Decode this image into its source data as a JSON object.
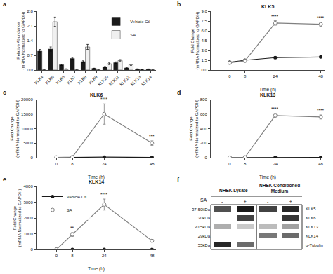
{
  "chart_data": [
    {
      "type": "bar",
      "annotations": [
        {
          "text": "a"
        }
      ],
      "categories": [
        "KLK4",
        "KLK5",
        "KLK6",
        "KLK7",
        "KLK8",
        "KLK9",
        "KLK10",
        "KLK11",
        "KLK12",
        "KLK13",
        "KLK14"
      ],
      "series": [
        {
          "name": "Vehicle Ctl",
          "color": "#1a1a1a",
          "values": [
            0.9,
            1.0,
            0.25,
            0.55,
            0.4,
            0.08,
            0.15,
            0.35,
            0.1,
            0.05,
            0.05
          ],
          "errors": [
            0.08,
            0.1,
            0.03,
            0.05,
            0.04,
            0.01,
            0.02,
            0.04,
            0.01,
            0.01,
            0.005
          ]
        },
        {
          "name": "SA",
          "color": "#f0f0f0",
          "values": [
            0.0,
            2.3,
            0.05,
            0.0,
            1.1,
            0.0,
            0.3,
            0.45,
            0.25,
            0.02,
            0.0
          ],
          "errors": [
            0.0,
            0.22,
            0.01,
            0.0,
            0.12,
            0.0,
            0.04,
            0.05,
            0.03,
            0.005,
            0.0
          ]
        }
      ],
      "ylabel": "Relative Abundance\n(mRNA Normalized to GAPDH)",
      "ylim": [
        0,
        2.8
      ],
      "yticks": [
        {
          "value": 0.0,
          "label": "0.0"
        },
        0.7,
        1.4,
        2.1,
        2.8
      ],
      "legend": "upper right",
      "grid": false
    },
    {
      "type": "line",
      "title": "KLK5",
      "annotations": [
        {
          "text": "b"
        },
        {
          "x": 24,
          "text": "****"
        },
        {
          "x": 48,
          "text": "****"
        }
      ],
      "x": [
        0,
        8,
        24,
        48
      ],
      "series": [
        {
          "color": "#1a1a1a",
          "marker": "circle",
          "values": [
            1.2,
            1.5,
            1.9,
            2.0
          ],
          "errors": [
            0.05,
            0.1,
            0.15,
            0.12
          ]
        },
        {
          "color": "#808080",
          "marker": "open_circle",
          "values": [
            1.1,
            1.4,
            7.2,
            7.0
          ],
          "errors": [
            0.05,
            0.1,
            0.35,
            0.3
          ]
        }
      ],
      "xlabel": "Time (h)",
      "ylabel": "Fold Change\n(mRNA Normalized to GAPDH)",
      "xlim": [
        -10,
        50
      ],
      "xticks": [
        0,
        8,
        24,
        48
      ],
      "ylim": [
        0,
        9.0
      ],
      "yticks": [
        {
          "value": 0.0,
          "label": "0.0"
        },
        1.5,
        {
          "value": 3.0,
          "label": "3.0"
        },
        4.5,
        {
          "value": 6.0,
          "label": "6.0"
        },
        7.5,
        {
          "value": 9.0,
          "label": "9.0"
        }
      ],
      "grid": false
    },
    {
      "type": "line",
      "title": "KLK6",
      "annotations": [
        {
          "text": "c"
        },
        {
          "x": 24,
          "text": "****"
        },
        {
          "x": 48,
          "text": "***"
        }
      ],
      "x": [
        0,
        8,
        24,
        48
      ],
      "series": [
        {
          "color": "#1a1a1a",
          "marker": "circle",
          "values": [
            50,
            80,
            200,
            100
          ],
          "errors": [
            20,
            30,
            100,
            50
          ]
        },
        {
          "color": "#808080",
          "marker": "open_circle",
          "values": [
            100,
            200,
            15000,
            5000
          ],
          "errors": [
            50,
            100,
            3500,
            800
          ]
        }
      ],
      "xlabel": "Time (h)",
      "ylabel": "Fold Change\n(mRNA Normalized to GAPDH)",
      "xlim": [
        -10,
        50
      ],
      "xticks": [
        0,
        8,
        24,
        48
      ],
      "ylim": [
        0,
        20000
      ],
      "yticks": [
        0,
        5000,
        10000,
        15000,
        20000
      ],
      "grid": false
    },
    {
      "type": "line",
      "title": "KLK13",
      "annotations": [
        {
          "text": "d"
        },
        {
          "x": 24,
          "text": "****"
        },
        {
          "x": 48,
          "text": "****"
        }
      ],
      "x": [
        0,
        8,
        24,
        48
      ],
      "series": [
        {
          "color": "#1a1a1a",
          "marker": "circle",
          "values": [
            2,
            3,
            5,
            4
          ],
          "errors": [
            0.5,
            0.5,
            1,
            1
          ]
        },
        {
          "color": "#808080",
          "marker": "open_circle",
          "values": [
            2,
            5,
            580,
            560
          ],
          "errors": [
            0.5,
            1,
            30,
            28
          ]
        }
      ],
      "xlabel": "Time (h)",
      "ylabel": "Fold Change\n(mRNA Normalized to GAPDH)",
      "xlim": [
        -10,
        50
      ],
      "xticks": [
        0,
        8,
        24,
        48
      ],
      "ylim": [
        0,
        800
      ],
      "yticks": [
        0,
        200,
        400,
        600,
        800
      ],
      "grid": false
    },
    {
      "type": "line",
      "title": "KLK14",
      "annotations": [
        {
          "text": "e"
        },
        {
          "x": 8,
          "text": "**"
        },
        {
          "x": 24,
          "text": "****"
        }
      ],
      "x": [
        0,
        8,
        24,
        48
      ],
      "series": [
        {
          "name": "Vehicle Ctl",
          "color": "#1a1a1a",
          "marker": "circle",
          "values": [
            2,
            3,
            5,
            4
          ],
          "errors": [
            0.5,
            0.5,
            1,
            1
          ]
        },
        {
          "name": "SA",
          "color": "#808080",
          "marker": "open_circle",
          "values": [
            2,
            950,
            2850,
            550
          ],
          "errors": [
            0.5,
            120,
            350,
            80
          ]
        }
      ],
      "xlabel": "Time (h)",
      "ylabel": "Fold Change\n(mRNA Normalized to GAPDH)",
      "xlim": [
        -10,
        50
      ],
      "xticks": [
        0,
        8,
        24,
        48
      ],
      "ylim": [
        0,
        4000
      ],
      "yticks": [
        0,
        1000,
        2000,
        3000,
        4000
      ],
      "legend": "upper left",
      "grid": false
    },
    {
      "type": "heatmap",
      "annotations": [
        {
          "text": "f"
        }
      ],
      "categories": [
        "37-50kDa",
        "30kDa",
        "30.5kDa",
        "29kDa",
        "55kDa"
      ],
      "names": [
        "KLK5",
        "KLK6",
        "KLK13",
        "KLK14",
        "α-Tubulin"
      ],
      "columns": [
        "-",
        "+",
        "-",
        "+"
      ],
      "column_title": "SA",
      "column_groups": [
        "NHEK Lysate",
        "NHEK Lysate",
        "NHEK Conditioned\nMedium",
        "NHEK Conditioned\nMedium"
      ],
      "values": [
        [
          0.65,
          0.85,
          0.7,
          0.8
        ],
        [
          0.0,
          0.7,
          0.0,
          0.75
        ],
        [
          0.3,
          0.2,
          0.25,
          0.35
        ],
        [
          0.0,
          0.0,
          0.5,
          0.55
        ],
        [
          0.8,
          0.55,
          0.0,
          0.0
        ]
      ],
      "grid": false
    }
  ]
}
